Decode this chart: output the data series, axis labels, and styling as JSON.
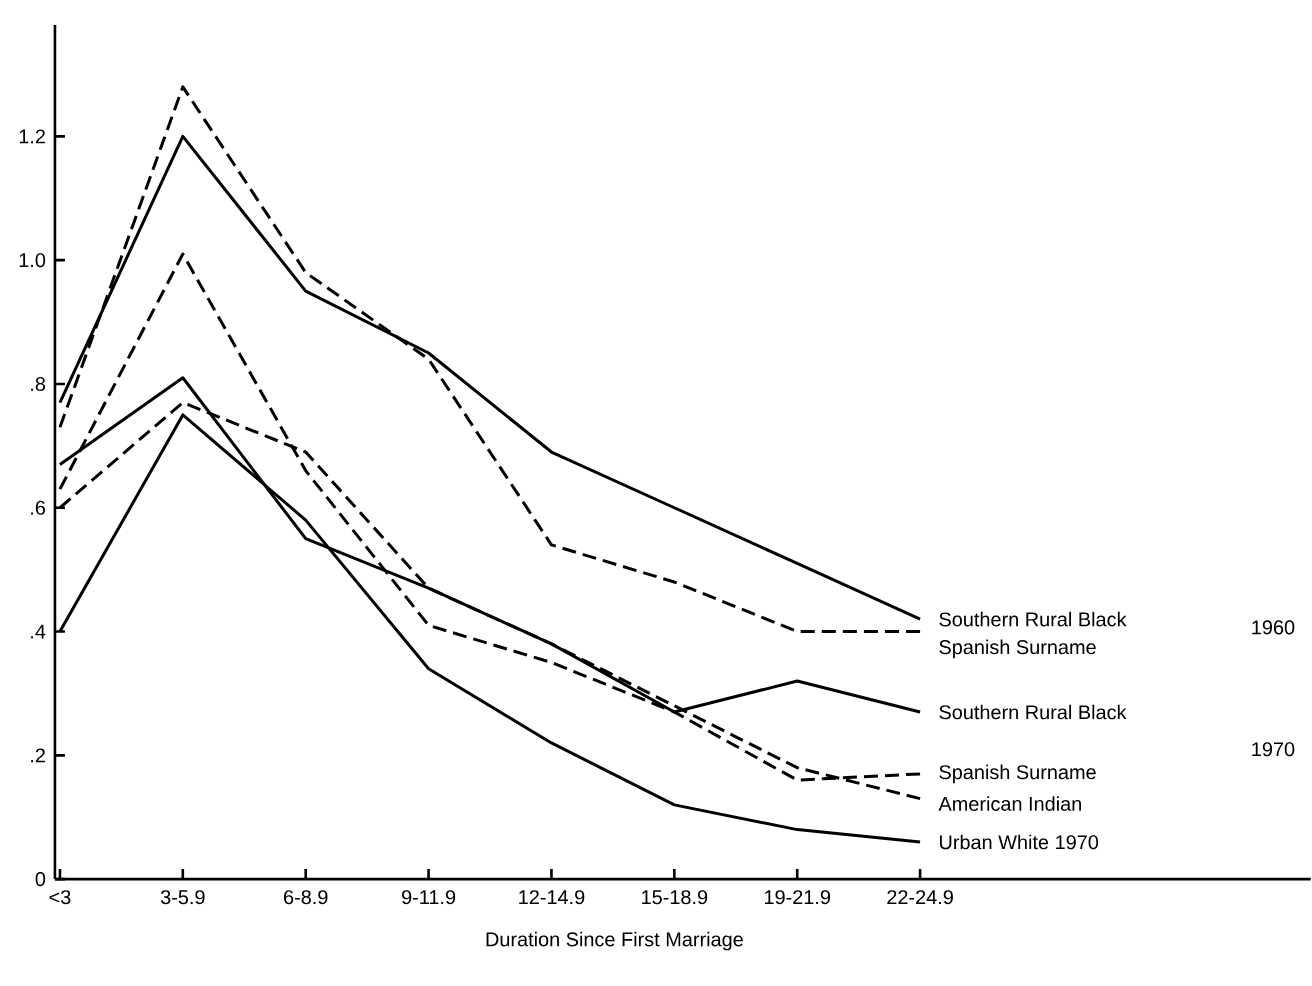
{
  "chart_data": {
    "type": "line",
    "xlabel": "Duration Since First Marriage",
    "categories": [
      "<3",
      "3-5.9",
      "6-8.9",
      "9-11.9",
      "12-14.9",
      "15-18.9",
      "19-21.9",
      "22-24.9"
    ],
    "ylim": [
      0,
      1.38
    ],
    "yticks": [
      0,
      {
        "value": 0.2,
        "label": ".2"
      },
      {
        "value": 0.4,
        "label": ".4"
      },
      {
        "value": 0.6,
        "label": ".6"
      },
      {
        "value": 0.8,
        "label": ".8"
      },
      {
        "value": 1.0,
        "label": "1.0"
      },
      1.2
    ],
    "series": [
      {
        "name": "Southern Rural Black",
        "color": "#000000",
        "line_style": "solid",
        "values": [
          0.77,
          1.2,
          0.95,
          0.85,
          0.69,
          0.6,
          0.51,
          0.42
        ]
      },
      {
        "name": "Spanish Surname",
        "color": "#000000",
        "line_style": "dashed",
        "values": [
          0.73,
          1.28,
          0.98,
          0.84,
          0.54,
          0.48,
          0.4,
          0.4
        ]
      },
      {
        "name": "Southern Rural Black",
        "color": "#000000",
        "line_style": "solid",
        "values": [
          0.67,
          0.81,
          0.55,
          0.47,
          0.38,
          0.27,
          0.32,
          0.27
        ]
      },
      {
        "name": "Spanish Surname",
        "color": "#000000",
        "line_style": "dashed",
        "values": [
          0.63,
          1.01,
          0.66,
          0.41,
          0.35,
          0.27,
          0.16,
          0.17
        ]
      },
      {
        "name": "American Indian",
        "color": "#000000",
        "line_style": "dashed",
        "values": [
          0.6,
          0.77,
          0.69,
          0.47,
          0.38,
          0.28,
          0.18,
          0.13
        ]
      },
      {
        "name": "Urban White 1970",
        "color": "#000000",
        "line_style": "solid",
        "values": [
          0.4,
          0.75,
          0.58,
          0.34,
          0.22,
          0.12,
          0.08,
          0.06
        ]
      }
    ],
    "annotations": [
      "1960",
      "1970"
    ]
  }
}
